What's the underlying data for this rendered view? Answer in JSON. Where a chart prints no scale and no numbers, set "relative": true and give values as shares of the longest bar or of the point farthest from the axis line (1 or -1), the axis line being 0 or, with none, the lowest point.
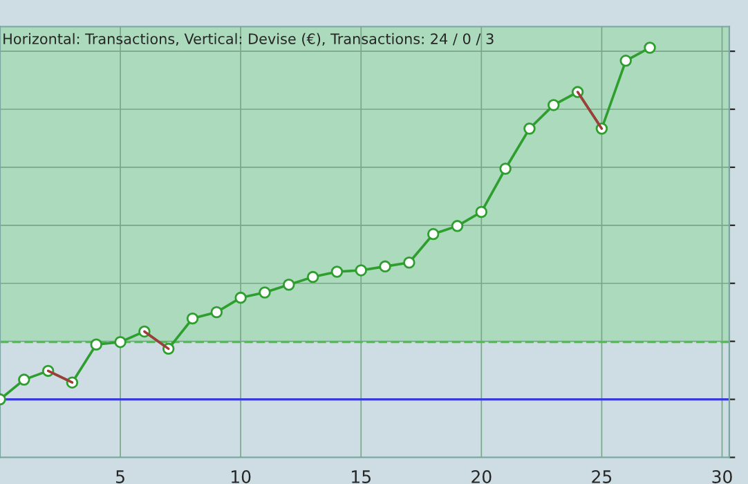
{
  "chart_data": {
    "type": "line",
    "title": "Horizontal: Transactions, Vertical: Devise (€), Transactions: 24 / 0 / 3",
    "relative": true,
    "xlim": [
      0,
      30.3
    ],
    "xticks": [
      5,
      10,
      15,
      20,
      25,
      30
    ],
    "tick_labels": "x",
    "grid": true,
    "marker": "circle",
    "line_style": "solid",
    "series": [
      {
        "x": [
          0,
          1,
          2,
          3,
          4,
          5,
          6,
          7,
          8,
          9,
          10,
          11,
          12,
          13,
          14,
          15,
          16,
          17,
          18,
          19,
          20,
          21,
          22,
          23,
          24,
          25,
          26,
          27
        ],
        "values": [
          0,
          0.056,
          0.081,
          0.048,
          0.156,
          0.163,
          0.193,
          0.144,
          0.23,
          0.248,
          0.289,
          0.304,
          0.326,
          0.348,
          0.363,
          0.367,
          0.378,
          0.389,
          0.47,
          0.493,
          0.533,
          0.656,
          0.77,
          0.837,
          0.874,
          0.77,
          0.963,
          1
        ],
        "color": "#2e9e2e"
      },
      {
        "x": [
          2,
          3
        ],
        "values": [
          0.081,
          0.048
        ],
        "color": "#a03c3c",
        "marker": "none"
      },
      {
        "x": [
          6,
          7
        ],
        "values": [
          0.193,
          0.144
        ],
        "color": "#a03c3c",
        "marker": "none"
      },
      {
        "x": [
          24,
          25
        ],
        "values": [
          0.874,
          0.77
        ],
        "color": "#a03c3c",
        "marker": "none"
      }
    ],
    "ref_lines": [
      {
        "axis": "y",
        "value": 0,
        "color": "#3a3ad8",
        "line_style": "solid"
      },
      {
        "axis": "y",
        "value": 0.163,
        "color": "#4fbf4f",
        "line_style": "dashed"
      }
    ],
    "bands": [
      {
        "axis": "y",
        "from": 0.163,
        "to": 1.06,
        "color": "#acdabc"
      }
    ]
  }
}
